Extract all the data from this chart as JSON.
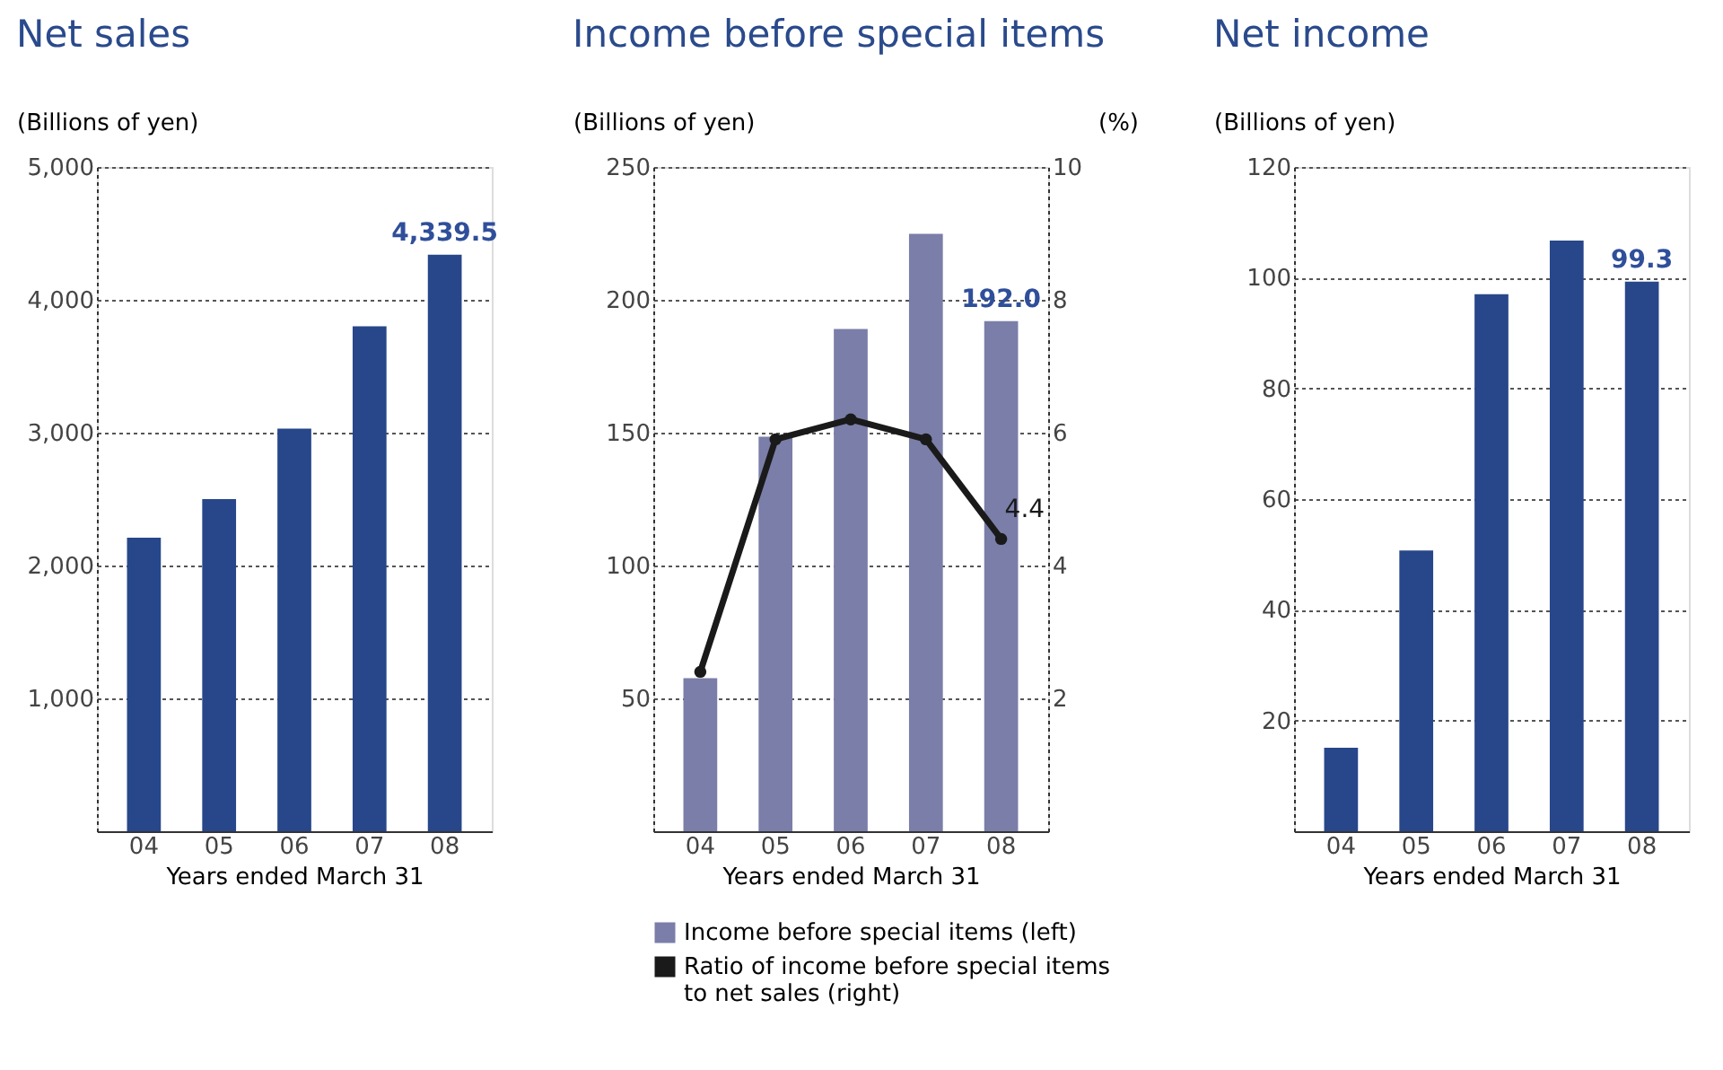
{
  "chart_data": [
    {
      "type": "bar",
      "title": "Net sales",
      "ylabel": "(Billions of yen)",
      "xlabel": "Years ended March 31",
      "categories": [
        "04",
        "05",
        "06",
        "07",
        "08"
      ],
      "ylim": [
        0,
        5000
      ],
      "yticks": [
        {
          "value": 1000,
          "label": "1,000"
        },
        {
          "value": 2000,
          "label": "2,000"
        },
        {
          "value": 3000,
          "label": "3,000"
        },
        {
          "value": 4000,
          "label": "4,000"
        },
        {
          "value": 5000,
          "label": "5,000"
        }
      ],
      "grid": "y",
      "legend": false,
      "series": [
        {
          "type": "bar",
          "color": "#27478a",
          "values": [
            2210,
            2500,
            3030,
            3800,
            4339.5
          ],
          "value_labels": [
            null,
            null,
            null,
            null,
            "4,339.5"
          ]
        }
      ]
    },
    {
      "type": "bar",
      "title": "Income before special items",
      "ylabel": "(Billions of yen)",
      "y2label": "(%)",
      "xlabel": "Years ended March 31",
      "categories": [
        "04",
        "05",
        "06",
        "07",
        "08"
      ],
      "ylim": [
        0,
        250
      ],
      "yticks": [
        50,
        100,
        150,
        200,
        250
      ],
      "y2lim": [
        0,
        10
      ],
      "y2ticks": [
        2,
        4,
        6,
        8,
        10
      ],
      "grid": "y",
      "legend": "bottom",
      "series": [
        {
          "type": "bar",
          "name": "Income before special items (left)",
          "color": "#7a7ea8",
          "values": [
            57.6,
            148.5,
            189,
            224.8,
            192.0
          ],
          "value_labels": [
            null,
            null,
            null,
            null,
            "192.0"
          ]
        },
        {
          "type": "line",
          "axis": "y2",
          "marker": "circle",
          "name": "Ratio of income before special items to net sales (right)",
          "color": "#1a1a1a",
          "values": [
            2.4,
            5.9,
            6.2,
            5.9,
            4.4
          ],
          "value_labels": [
            null,
            null,
            null,
            null,
            "4.4"
          ]
        }
      ]
    },
    {
      "type": "bar",
      "title": "Net income",
      "ylabel": "(Billions of yen)",
      "xlabel": "Years ended March 31",
      "categories": [
        "04",
        "05",
        "06",
        "07",
        "08"
      ],
      "ylim": [
        0,
        120
      ],
      "yticks": [
        20,
        40,
        60,
        80,
        100,
        120
      ],
      "grid": "y",
      "legend": false,
      "series": [
        {
          "type": "bar",
          "color": "#27478a",
          "values": [
            15.1,
            50.7,
            97.0,
            106.7,
            99.3
          ],
          "value_labels": [
            null,
            null,
            null,
            null,
            "99.3"
          ]
        }
      ]
    }
  ]
}
